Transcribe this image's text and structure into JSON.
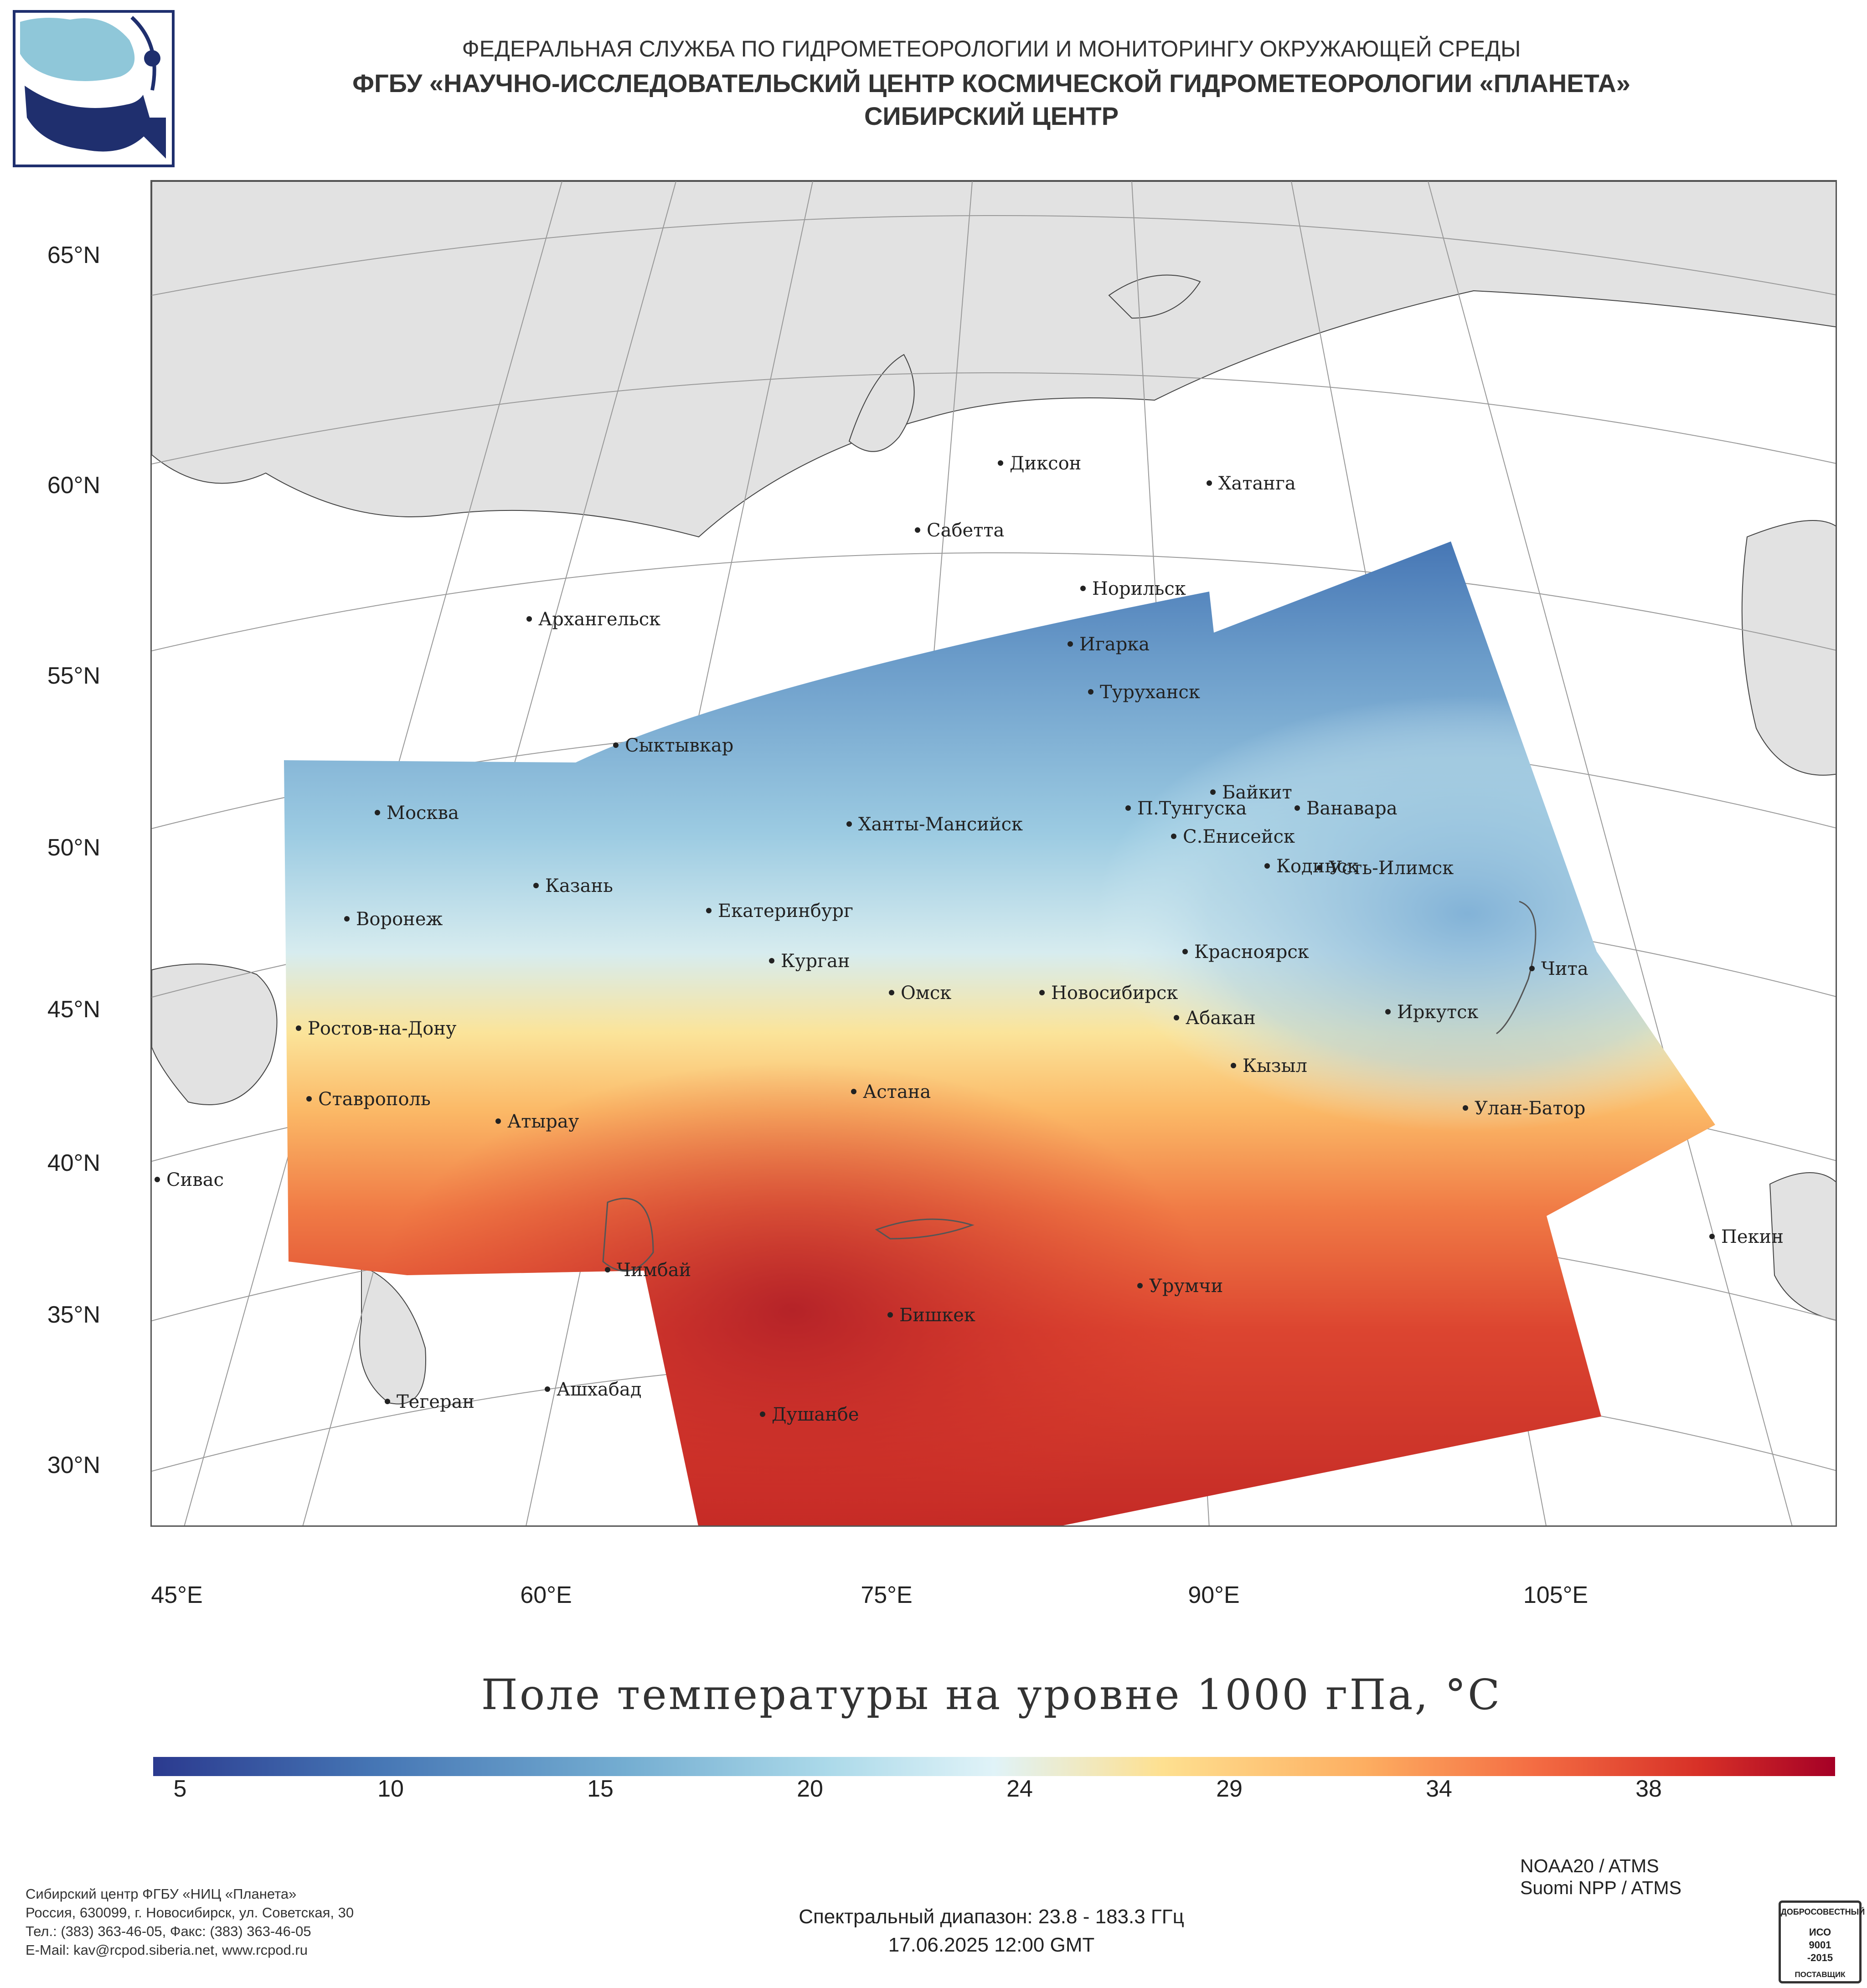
{
  "header": {
    "org_line1": "ФЕДЕРАЛЬНАЯ СЛУЖБА ПО ГИДРОМЕТЕОРОЛОГИИ И МОНИТОРИНГУ ОКРУЖАЮЩЕЙ СРЕДЫ",
    "org_line2": "ФГБУ «НАУЧНО-ИССЛЕДОВАТЕЛЬСКИЙ ЦЕНТР КОСМИЧЕСКОЙ ГИДРОМЕТЕОРОЛОГИИ «ПЛАНЕТА»",
    "org_line3": "СИБИРСКИЙ ЦЕНТР"
  },
  "map": {
    "title": "Поле температуры на уровне 1000 гПа, °C",
    "lat_labels": [
      "65°N",
      "60°N",
      "55°N",
      "50°N",
      "45°N",
      "40°N",
      "35°N",
      "30°N"
    ],
    "lon_labels": [
      "45°E",
      "60°E",
      "75°E",
      "90°E",
      "105°E"
    ],
    "cities": [
      {
        "name": "Диксон"
      },
      {
        "name": "Хатанга"
      },
      {
        "name": "Сабетта"
      },
      {
        "name": "Норильск"
      },
      {
        "name": "Архангельск"
      },
      {
        "name": "Игарка"
      },
      {
        "name": "Туруханск"
      },
      {
        "name": "Сыктывкар"
      },
      {
        "name": "Байкит"
      },
      {
        "name": "Москва"
      },
      {
        "name": "П.Тунгуска"
      },
      {
        "name": "Ванавара"
      },
      {
        "name": "Ханты-Мансийск"
      },
      {
        "name": "С.Енисейск"
      },
      {
        "name": "Кодинск"
      },
      {
        "name": "Усть-Илимск"
      },
      {
        "name": "Казань"
      },
      {
        "name": "Екатеринбург"
      },
      {
        "name": "Воронеж"
      },
      {
        "name": "Красноярск"
      },
      {
        "name": "Курган"
      },
      {
        "name": "Чита"
      },
      {
        "name": "Омск"
      },
      {
        "name": "Новосибирск"
      },
      {
        "name": "Иркутск"
      },
      {
        "name": "Ростов-на-Дону"
      },
      {
        "name": "Абакан"
      },
      {
        "name": "Кызыл"
      },
      {
        "name": "Ставрополь"
      },
      {
        "name": "Астана"
      },
      {
        "name": "Улан-Батор"
      },
      {
        "name": "Атырау"
      },
      {
        "name": "Сивас"
      },
      {
        "name": "Пекин"
      },
      {
        "name": "Чимбай"
      },
      {
        "name": "Урумчи"
      },
      {
        "name": "Бишкек"
      },
      {
        "name": "Ашхабад"
      },
      {
        "name": "Тегеран"
      },
      {
        "name": "Душанбе"
      }
    ]
  },
  "colorbar": {
    "ticks": [
      "5",
      "10",
      "15",
      "20",
      "24",
      "29",
      "34",
      "38"
    ],
    "stops": [
      "#2b3a8f",
      "#4575b4",
      "#74add1",
      "#abd9e9",
      "#e0f3f8",
      "#fee090",
      "#fdae61",
      "#f46d43",
      "#d73027",
      "#a50026"
    ]
  },
  "footer": {
    "org_name": "Сибирский центр ФГБУ «НИЦ «Планета»",
    "address": "Россия, 630099, г. Новосибирск, ул. Советская, 30",
    "phones": "Тел.: (383) 363-46-05, Факс: (383) 363-46-05",
    "email": "E-Mail: kav@rcpod.siberia.net, www.rcpod.ru",
    "spectral": "Спектральный диапазон: 23.8 - 183.3 ГГц",
    "datetime": "17.06.2025 12:00 GMT",
    "sensor1": "NOAA20 / ATMS",
    "sensor2": "Suomi NPP / ATMS",
    "iso_top": "ДОБРОСОВЕСТНЫЙ",
    "iso_mid1": "ИСО",
    "iso_mid2": "9001",
    "iso_mid3": "-2015",
    "iso_bottom": "ПОСТАВЩИК"
  },
  "colors": {
    "land": "#e2e2e2",
    "coast": "#444444",
    "graticule": "#999999",
    "logo_blue": "#1f2f6e",
    "logo_light": "#8fc7d9"
  }
}
